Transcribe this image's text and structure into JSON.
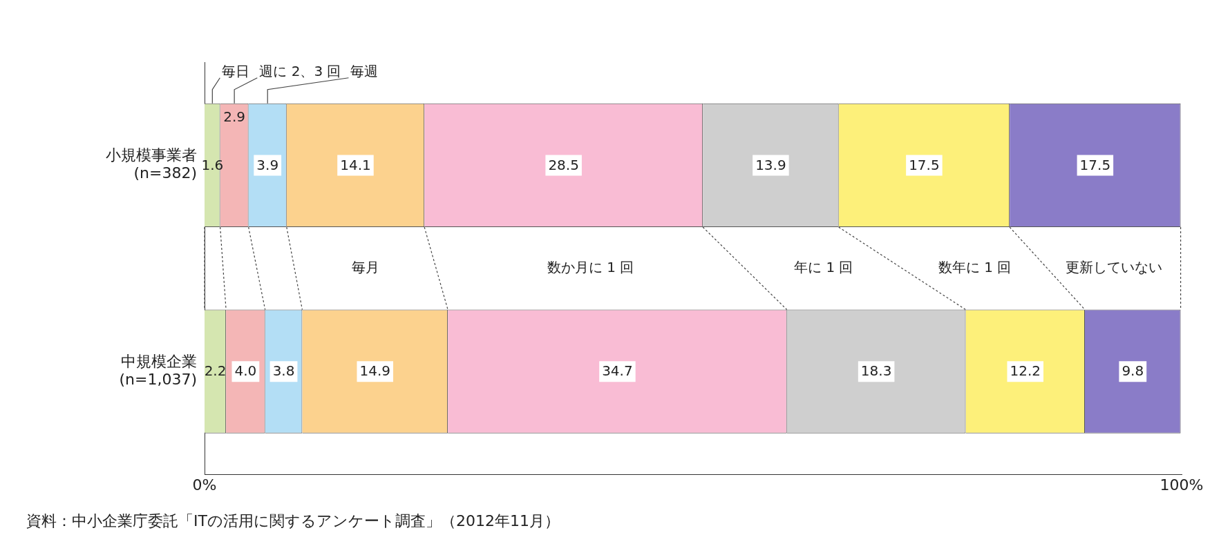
{
  "chart_data": {
    "type": "bar",
    "orientation": "horizontal",
    "stacked": true,
    "categories": [
      "小規模事業者\n(n=382)",
      "中規模企業\n(n=1,037)"
    ],
    "series": [
      {
        "name": "毎日",
        "color": "#d5e6b0",
        "values": [
          1.6,
          2.2
        ],
        "value_labels": [
          "1.6",
          "2.2"
        ]
      },
      {
        "name": "週に 2、3 回",
        "color": "#f4b6b6",
        "values": [
          2.9,
          4.0
        ],
        "value_labels": [
          "2.9",
          "4.0"
        ]
      },
      {
        "name": "毎週",
        "color": "#b3def5",
        "values": [
          3.9,
          3.8
        ],
        "value_labels": [
          "3.9",
          "3.8"
        ]
      },
      {
        "name": "毎月",
        "color": "#fcd28e",
        "values": [
          14.1,
          14.9
        ],
        "value_labels": [
          "14.1",
          "14.9"
        ]
      },
      {
        "name": "数か月に 1 回",
        "color": "#f9bcd4",
        "values": [
          28.5,
          34.7
        ],
        "value_labels": [
          "28.5",
          "34.7"
        ]
      },
      {
        "name": "年に 1 回",
        "color": "#cfcfcf",
        "values": [
          13.9,
          18.3
        ],
        "value_labels": [
          "13.9",
          "18.3"
        ]
      },
      {
        "name": "数年に 1 回",
        "color": "#fdf07a",
        "values": [
          17.5,
          12.2
        ],
        "value_labels": [
          "17.5",
          "12.2"
        ]
      },
      {
        "name": "更新していない",
        "color": "#8a7cc8",
        "values": [
          17.5,
          9.8
        ],
        "value_labels": [
          "17.5",
          "9.8"
        ]
      }
    ],
    "xlim": [
      0,
      100
    ],
    "xticks": [
      {
        "value": 0,
        "label": "0%"
      },
      {
        "value": 100,
        "label": "100%"
      }
    ],
    "grid": false,
    "legend": "top left",
    "annotations": [
      "資料：中小企業庁委託「ITの活用に関するアンケート調査」（2012年11月）"
    ]
  }
}
